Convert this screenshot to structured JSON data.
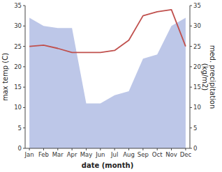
{
  "chart_data": {
    "type": "line",
    "categories": [
      "Jan",
      "Feb",
      "Mar",
      "Apr",
      "May",
      "Jun",
      "Jul",
      "Aug",
      "Sep",
      "Oct",
      "Nov",
      "Dec"
    ],
    "series": [
      {
        "type": "area",
        "color": "#bdc7e8",
        "axis": "y2",
        "values": [
          32,
          30,
          29.5,
          29.5,
          11,
          11,
          13,
          14,
          22,
          23,
          30,
          32
        ]
      },
      {
        "type": "line",
        "color": "#c0504d",
        "values": [
          25,
          25.3,
          24.5,
          23.5,
          23.5,
          23.5,
          24,
          26.5,
          32.5,
          33.5,
          34,
          25
        ]
      }
    ],
    "ylim": [
      0,
      35
    ],
    "yticks": [
      0,
      5,
      10,
      15,
      20,
      25,
      30,
      35
    ],
    "y2lim": [
      0,
      35
    ],
    "y2ticks": [
      0,
      5,
      10,
      15,
      20,
      25,
      30,
      35
    ],
    "ylabel": "max temp (C)",
    "y2label": "med. precipitation\n(kg/m2)",
    "xlabel": "date (month)",
    "grid": false
  }
}
